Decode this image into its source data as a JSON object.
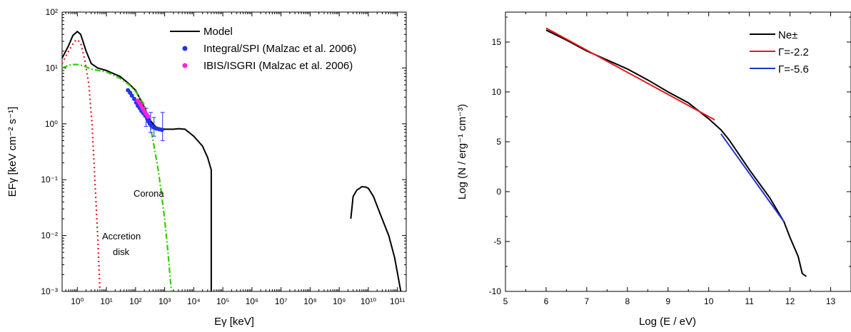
{
  "chart_data": [
    {
      "type": "line",
      "title": "",
      "xlabel": "Eγ [keV]",
      "ylabel": "EFγ [keV cm⁻² s⁻¹]",
      "xscale": "log",
      "yscale": "log",
      "xlim": [
        0.3,
        200000000000
      ],
      "ylim": [
        0.001,
        100
      ],
      "x_tick_labels": [
        "10⁰",
        "10¹",
        "10²",
        "10³",
        "10⁴",
        "10⁵",
        "10⁶",
        "10⁷",
        "10⁸",
        "10⁹",
        "10¹⁰",
        "10¹¹"
      ],
      "y_tick_labels": [
        "10⁻³",
        "10⁻²",
        "10⁻¹",
        "10⁰",
        "10¹",
        "10²"
      ],
      "legend_position": "top-right",
      "series": [
        {
          "name": "Model",
          "style": "solid",
          "color": "#000000",
          "segments": [
            [
              [
                0.3,
                15
              ],
              [
                0.5,
                25
              ],
              [
                0.7,
                38
              ],
              [
                1.0,
                45
              ],
              [
                1.3,
                40
              ],
              [
                2,
                20
              ],
              [
                3,
                12
              ],
              [
                5,
                10
              ],
              [
                10,
                9
              ],
              [
                30,
                7
              ],
              [
                60,
                5.2
              ],
              [
                100,
                4
              ],
              [
                200,
                2
              ],
              [
                300,
                1.2
              ],
              [
                500,
                0.88
              ],
              [
                700,
                0.83
              ],
              [
                1000,
                0.8
              ],
              [
                2000,
                0.8
              ],
              [
                3000,
                0.82
              ],
              [
                5000,
                0.8
              ],
              [
                10000,
                0.6
              ],
              [
                20000,
                0.4
              ],
              [
                30000,
                0.25
              ],
              [
                40000,
                0.15
              ],
              [
                40000,
                0.001
              ]
            ],
            [
              [
                2500000000,
                0.02
              ],
              [
                3000000000,
                0.05
              ],
              [
                4000000000,
                0.065
              ],
              [
                5000000000,
                0.07
              ],
              [
                6000000000,
                0.075
              ],
              [
                8000000000,
                0.074
              ],
              [
                10000000000,
                0.07
              ],
              [
                15000000000,
                0.05
              ],
              [
                25000000000,
                0.025
              ],
              [
                50000000000,
                0.01
              ],
              [
                80000000000,
                0.004
              ],
              [
                130000000000,
                0.001
              ]
            ]
          ]
        },
        {
          "name": "Accretion disk",
          "style": "dotted",
          "color": "#e31a1c",
          "points": [
            [
              0.3,
              12
            ],
            [
              0.5,
              20
            ],
            [
              0.8,
              30
            ],
            [
              1.0,
              32
            ],
            [
              1.3,
              28
            ],
            [
              1.8,
              14
            ],
            [
              2.5,
              5
            ],
            [
              3.2,
              1
            ],
            [
              4,
              0.1
            ],
            [
              5,
              0.01
            ],
            [
              6,
              0.001
            ]
          ]
        },
        {
          "name": "Corona",
          "style": "dash-dot",
          "color": "#33cc00",
          "points": [
            [
              0.3,
              10
            ],
            [
              0.6,
              11.5
            ],
            [
              1.0,
              11.5
            ],
            [
              1.6,
              11
            ],
            [
              3,
              9.5
            ],
            [
              10,
              8.5
            ],
            [
              30,
              6.5
            ],
            [
              60,
              5
            ],
            [
              100,
              3.8
            ],
            [
              200,
              2.2
            ],
            [
              300,
              1.1
            ],
            [
              400,
              0.5
            ],
            [
              600,
              0.15
            ],
            [
              800,
              0.05
            ],
            [
              1000,
              0.02
            ],
            [
              1300,
              0.005
            ],
            [
              1700,
              0.001
            ]
          ]
        },
        {
          "name": "Integral/SPI (Malzac et al. 2006)",
          "type": "scatter",
          "color": "#2233ee",
          "points": [
            [
              55,
              4.0
            ],
            [
              65,
              3.6
            ],
            [
              75,
              3.2
            ],
            [
              90,
              2.8
            ],
            [
              105,
              2.4
            ],
            [
              120,
              2.1
            ],
            [
              140,
              1.9
            ],
            [
              160,
              1.7
            ],
            [
              185,
              1.55
            ],
            [
              215,
              1.4
            ],
            [
              250,
              1.25
            ],
            [
              280,
              1.1
            ],
            [
              310,
              1.0
            ],
            [
              350,
              0.92
            ],
            [
              420,
              0.86
            ],
            [
              520,
              0.82
            ],
            [
              650,
              0.8
            ],
            [
              800,
              0.78
            ]
          ],
          "error_bars": [
            [
              230,
              0.9,
              1.9
            ],
            [
              330,
              0.7,
              1.6
            ],
            [
              430,
              0.6,
              1.3
            ],
            [
              850,
              0.5,
              1.6
            ]
          ]
        },
        {
          "name": "IBIS/ISGRI (Malzac et al. 2006)",
          "type": "scatter",
          "color": "#ff22dd",
          "points": [
            [
              120,
              2.6
            ],
            [
              135,
              2.4
            ],
            [
              150,
              2.2
            ],
            [
              165,
              2.0
            ],
            [
              180,
              1.85
            ],
            [
              200,
              1.7
            ],
            [
              220,
              1.55
            ],
            [
              245,
              1.45
            ],
            [
              270,
              1.35
            ]
          ]
        }
      ],
      "annotations": [
        "Corona",
        "Accretion",
        "disk"
      ]
    },
    {
      "type": "line",
      "title": "",
      "xlabel": "Log (E / eV)",
      "ylabel": "Log (N / erg⁻¹ cm⁻³)",
      "xlim": [
        5,
        13.5
      ],
      "ylim": [
        -10,
        18
      ],
      "x_ticks": [
        5,
        6,
        7,
        8,
        9,
        10,
        11,
        12,
        13
      ],
      "y_ticks": [
        -10,
        -5,
        0,
        5,
        10,
        15
      ],
      "legend_position": "top-right",
      "series": [
        {
          "name": "Ne±",
          "color": "#000000",
          "points": [
            [
              6.0,
              16.2
            ],
            [
              6.5,
              15.2
            ],
            [
              7.0,
              14.1
            ],
            [
              7.5,
              13.2
            ],
            [
              8.0,
              12.3
            ],
            [
              8.5,
              11.2
            ],
            [
              9.0,
              10.0
            ],
            [
              9.5,
              8.9
            ],
            [
              10.0,
              7.3
            ],
            [
              10.3,
              6.2
            ],
            [
              10.5,
              5.2
            ],
            [
              11.0,
              2.2
            ],
            [
              11.5,
              -0.6
            ],
            [
              11.85,
              -3.0
            ],
            [
              12.0,
              -4.6
            ],
            [
              12.2,
              -6.5
            ],
            [
              12.3,
              -8.2
            ],
            [
              12.4,
              -8.5
            ]
          ]
        },
        {
          "name": "Γ=-2.2",
          "color": "#e31a1c",
          "points": [
            [
              6.0,
              16.4
            ],
            [
              10.15,
              7.2
            ]
          ]
        },
        {
          "name": "Γ=-5.6",
          "color": "#2233cc",
          "points": [
            [
              10.3,
              5.8
            ],
            [
              11.85,
              -3.0
            ]
          ]
        }
      ]
    }
  ]
}
